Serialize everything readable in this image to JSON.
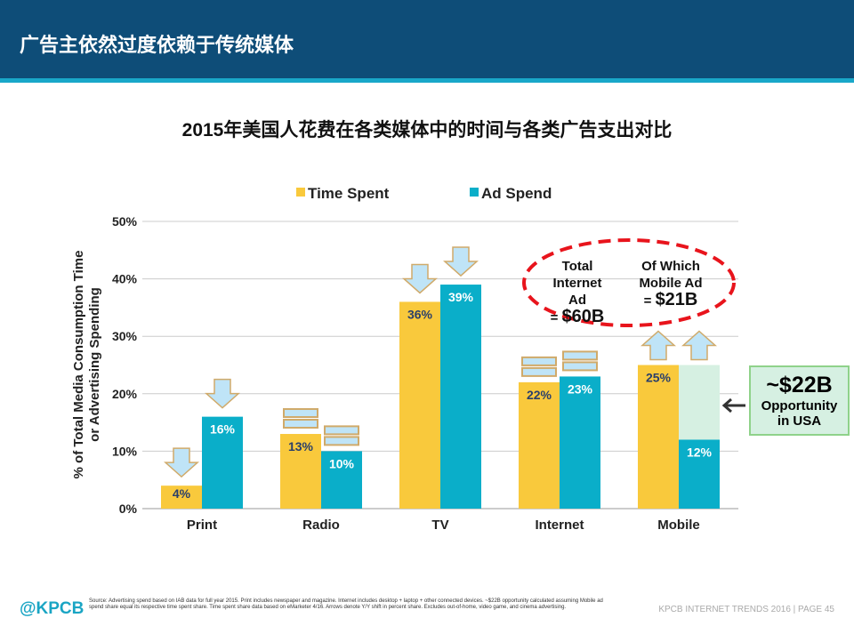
{
  "header": {
    "title": "广告主依然过度依赖于传统媒体"
  },
  "chart_data": {
    "type": "bar",
    "title": "2015年美国人花费在各类媒体中的时间与各类广告支出对比",
    "ylabel": "% of Total Media Consumption Time or Advertising Spending",
    "ylabel_lines": [
      "% of Total Media Consumption Time",
      "or Advertising Spending"
    ],
    "xlabel": "",
    "ylim": [
      0,
      50
    ],
    "yticks": [
      "0%",
      "10%",
      "20%",
      "30%",
      "40%",
      "50%"
    ],
    "grid": true,
    "legend_position": "top",
    "categories": [
      "Print",
      "Radio",
      "TV",
      "Internet",
      "Mobile"
    ],
    "series": [
      {
        "name": "Time Spent",
        "color": "#F9C93C",
        "values": [
          4,
          13,
          36,
          22,
          25
        ],
        "labels": [
          "4%",
          "13%",
          "36%",
          "22%",
          "25%"
        ],
        "trend": [
          "down",
          "flat",
          "down",
          "flat",
          "up"
        ]
      },
      {
        "name": "Ad Spend",
        "color": "#0AAEC9",
        "values": [
          16,
          10,
          39,
          23,
          12
        ],
        "labels": [
          "16%",
          "10%",
          "39%",
          "23%",
          "12%"
        ],
        "trend": [
          "down",
          "flat",
          "down",
          "flat",
          "up"
        ]
      }
    ],
    "mobile_gap_to": 25
  },
  "callout": {
    "total_label_1": "Total",
    "total_label_2": "Internet Ad",
    "total_value": "$60B",
    "eq": "=",
    "mobile_label_1": "Of Which",
    "mobile_label_2": "Mobile Ad",
    "mobile_value": "$21B"
  },
  "opportunity": {
    "value": "~$22B",
    "line1": "Opportunity",
    "line2": "in USA"
  },
  "footer": {
    "logo": "@KPCB",
    "source": "Source: Advertising spend based on IAB data for full year 2015. Print includes newspaper and magazine. Internet includes desktop + laptop + other connected devices. ~$22B opportunity calculated assuming Mobile ad spend share equal its respective time spent share. Time spent share data based on eMarketer 4/16. Arrows denote Y/Y shift in percent share. Excludes out-of-home, video game, and cinema advertising.",
    "right": "KPCB INTERNET TRENDS 2016   |   PAGE 45"
  }
}
